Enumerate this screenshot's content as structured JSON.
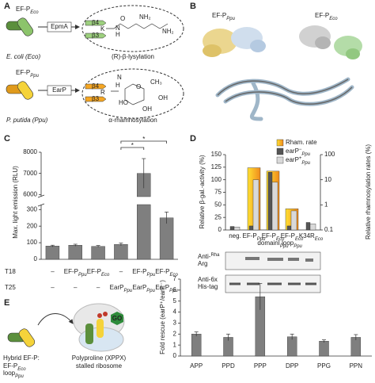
{
  "figure": {
    "panel_labels": [
      "A",
      "B",
      "C",
      "D",
      "E"
    ],
    "a": {
      "eco": {
        "protein": {
          "main": "EF-P",
          "sub": "Eco"
        },
        "enzyme": "EpmA",
        "strands": [
          "β4",
          "β3"
        ],
        "residue": "K",
        "organism": "E. coli (Eco)",
        "modification": "(R)-β-lysylation",
        "atoms": [
          "H",
          "N",
          "O",
          "NH₂",
          "NH₂"
        ]
      },
      "ppu": {
        "protein": {
          "main": "EF-P",
          "sub": "Ppu"
        },
        "enzyme": "EarP",
        "strands": [
          "β4",
          "β3"
        ],
        "residue": "R",
        "organism": "P. putida (Ppu)",
        "modification": "α-rhamnosylation",
        "atoms": [
          "H",
          "N",
          "O",
          "CH₃",
          "HO",
          "OH",
          "OH"
        ]
      }
    },
    "b": {
      "labels": [
        {
          "main": "EF-P",
          "sub": "Ppu"
        },
        {
          "main": "EF-P",
          "sub": "Eco"
        }
      ]
    },
    "blots": [
      {
        "main": "Anti-",
        "line2": "Arg",
        "sup": "Rha"
      },
      {
        "main": "Anti-6x",
        "line2": "His-tag"
      }
    ],
    "e": {
      "hybrid": "Hybrid EF-P:",
      "hybrid_name": {
        "main": "EF-P",
        "sub": "Eco",
        "line2": "loop",
        "sub2": "Ppu"
      },
      "ribosome": [
        "Polyproline (XPPX)",
        "stalled ribosome"
      ],
      "go": "GO"
    }
  },
  "chart_data": [
    {
      "type": "bar",
      "y_label": "Max. light emission (RLU)",
      "values": [
        80,
        85,
        78,
        90,
        7000,
        250
      ],
      "errors": [
        5,
        6,
        5,
        8,
        700,
        35
      ],
      "color": "#7f7f7f",
      "ylim": [
        0,
        8000
      ],
      "axis_break": [
        330,
        5900
      ],
      "yticks": [
        0,
        100,
        200,
        300,
        6000,
        7000,
        8000
      ],
      "row_labels": [
        "T18",
        "T25"
      ],
      "rows": [
        [
          "–",
          {
            "main": "EF-P",
            "sub": "Ppu"
          },
          {
            "main": "EF-P",
            "sub": "Eco"
          },
          "–",
          {
            "main": "EF-P",
            "sub": "Ppu"
          },
          {
            "main": "EF-P",
            "sub": "Eco"
          }
        ],
        [
          "–",
          "–",
          "–",
          {
            "main": "EarP",
            "sub": "Ppu"
          },
          {
            "main": "EarP",
            "sub": "Ppu"
          },
          {
            "main": "EarP",
            "sub": "Ppu"
          }
        ]
      ],
      "significance": [
        "*",
        "*"
      ]
    },
    {
      "type": "bar",
      "y_label": "Relative β-gal.-activity (%)",
      "y2_label": "Relative rhamnosylation rates (%)",
      "categories": [
        "neg.",
        {
          "main": "EF-P",
          "sub": "Ppu"
        },
        {
          "main": "EF-P",
          "sub": "Eco",
          "line2": "domainI",
          "sub2": "Ppu"
        },
        {
          "main": "EF-P",
          "sub": "Eco",
          "line2": "loop",
          "sub2": "Ppu"
        },
        {
          "main": "K34R",
          "sub": "Eco"
        }
      ],
      "series": [
        {
          "name": "Rham. rate",
          "color": "#f08a1c",
          "axis": "y2",
          "values": [
            null,
            30,
            22,
            0.7,
            null
          ]
        },
        {
          "name": {
            "main": "earP",
            "sup": "−",
            "sub": "Ppu"
          },
          "color": "#555555",
          "values": [
            7,
            8,
            115,
            8,
            15
          ]
        },
        {
          "name": {
            "main": "earP",
            "sup": "+",
            "sub": "Ppu"
          },
          "color": "#d9d9d9",
          "values": [
            6,
            100,
            95,
            38,
            12
          ]
        }
      ],
      "ylim": [
        0,
        150
      ],
      "yticks": [
        0,
        25,
        50,
        75,
        100,
        125,
        150
      ],
      "y2lim": [
        0.1,
        100
      ],
      "y2ticks": [
        0.1,
        1,
        10,
        100
      ],
      "y2_log": true,
      "legend": "top-right"
    },
    {
      "type": "bar",
      "y_label": "Fold rescue (earP⁺/earP⁻)",
      "categories": [
        "APP",
        "PPD",
        "PPP",
        "DPP",
        "PPG",
        "PPN"
      ],
      "values": [
        2.0,
        1.7,
        5.4,
        1.75,
        1.35,
        1.7
      ],
      "errors": [
        0.2,
        0.3,
        1.2,
        0.25,
        0.12,
        0.25
      ],
      "color": "#7f7f7f",
      "ylim": [
        0,
        7
      ],
      "yticks": [
        0,
        1,
        2,
        3,
        4,
        5,
        6,
        7
      ]
    }
  ]
}
